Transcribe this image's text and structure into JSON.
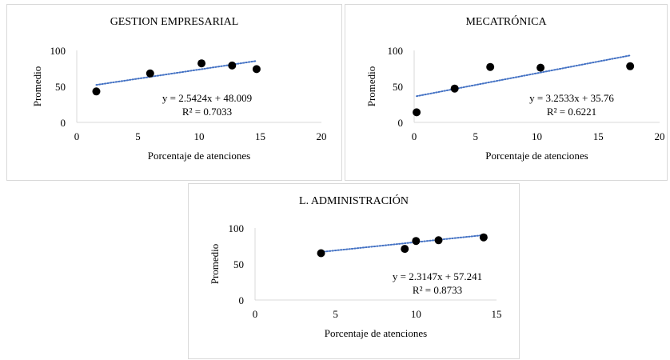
{
  "chart_data": [
    {
      "type": "scatter",
      "title": "GESTION EMPRESARIAL",
      "xlabel": "Porcentaje de atenciones",
      "ylabel": "Promedio",
      "xlim": [
        0,
        20
      ],
      "ylim": [
        0,
        100
      ],
      "xticks": [
        0,
        5,
        10,
        15,
        20
      ],
      "yticks": [
        0,
        50,
        100
      ],
      "grid": false,
      "marker_color": "#000000",
      "trendline_color": "#4472c4",
      "points": [
        {
          "x": 1.6,
          "y": 43
        },
        {
          "x": 6.0,
          "y": 68
        },
        {
          "x": 10.2,
          "y": 82
        },
        {
          "x": 12.7,
          "y": 79
        },
        {
          "x": 14.7,
          "y": 74
        }
      ],
      "trendline": {
        "slope": 2.5424,
        "intercept": 48.009,
        "x_range": [
          1.6,
          14.7
        ]
      },
      "equation": "y = 2.5424x + 48.009",
      "r2": "R² = 0.7033"
    },
    {
      "type": "scatter",
      "title": "MECATRÓNICA",
      "xlabel": "Porcentaje de atenciones",
      "ylabel": "Promedio",
      "xlim": [
        0,
        20
      ],
      "ylim": [
        0,
        100
      ],
      "xticks": [
        0,
        5,
        10,
        15,
        20
      ],
      "yticks": [
        0,
        50,
        100
      ],
      "grid": false,
      "marker_color": "#000000",
      "trendline_color": "#4472c4",
      "points": [
        {
          "x": 0.2,
          "y": 14
        },
        {
          "x": 3.3,
          "y": 47
        },
        {
          "x": 6.2,
          "y": 77
        },
        {
          "x": 10.3,
          "y": 76
        },
        {
          "x": 17.6,
          "y": 78
        }
      ],
      "trendline": {
        "slope": 3.2533,
        "intercept": 35.76,
        "x_range": [
          0.2,
          17.6
        ]
      },
      "equation": "y = 3.2533x + 35.76",
      "r2": "R² = 0.6221"
    },
    {
      "type": "scatter",
      "title": "L. ADMINISTRACIÓN",
      "xlabel": "Porcentaje de atenciones",
      "ylabel": "Promedio",
      "xlim": [
        0,
        15
      ],
      "ylim": [
        0,
        100
      ],
      "xticks": [
        0,
        5,
        10,
        15
      ],
      "yticks": [
        0,
        50,
        100
      ],
      "grid": false,
      "marker_color": "#000000",
      "trendline_color": "#4472c4",
      "points": [
        {
          "x": 4.1,
          "y": 65
        },
        {
          "x": 9.3,
          "y": 71
        },
        {
          "x": 10.0,
          "y": 82
        },
        {
          "x": 11.4,
          "y": 83
        },
        {
          "x": 14.2,
          "y": 87
        }
      ],
      "trendline": {
        "slope": 2.3147,
        "intercept": 57.241,
        "x_range": [
          4.1,
          14.2
        ]
      },
      "equation": "y = 2.3147x + 57.241",
      "r2": "R² = 0.8733"
    }
  ]
}
